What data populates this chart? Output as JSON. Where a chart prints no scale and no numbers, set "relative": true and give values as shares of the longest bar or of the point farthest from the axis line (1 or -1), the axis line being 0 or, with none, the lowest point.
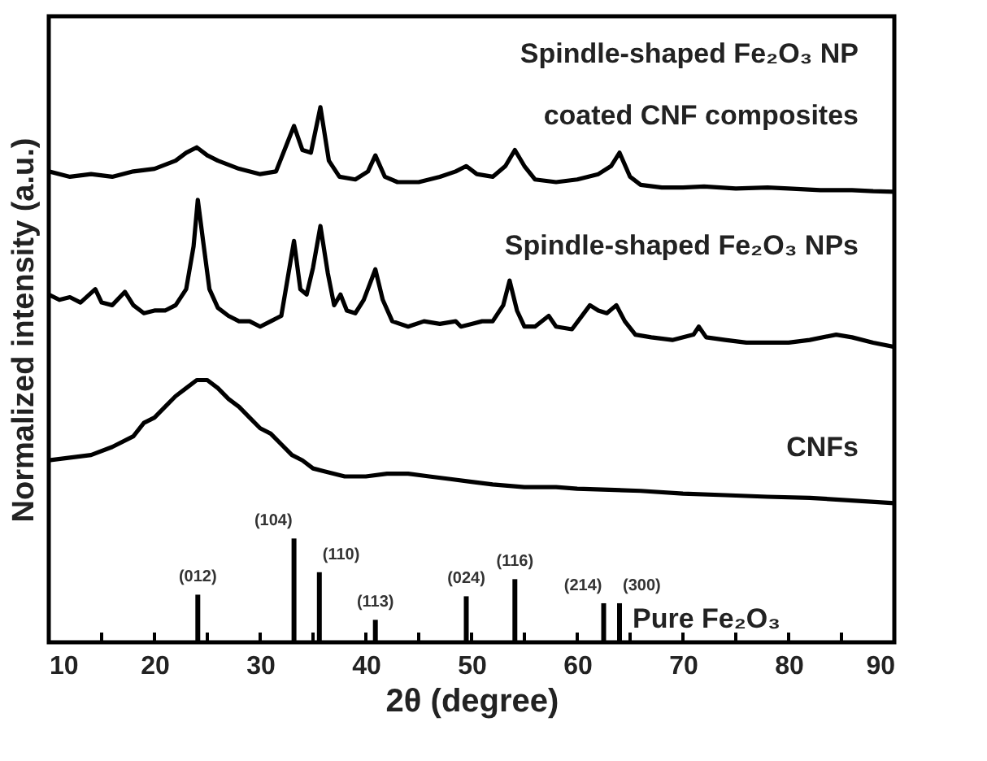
{
  "chart_data": {
    "type": "line",
    "relative": true,
    "xlabel": "2θ (degree)",
    "ylabel": "Normalized intensity (a.u.)",
    "xlim": [
      10,
      90
    ],
    "xticks": [
      10,
      {
        "value": 15,
        "label": null
      },
      20,
      {
        "value": 25,
        "label": null
      },
      30,
      {
        "value": 35,
        "label": null
      },
      40,
      {
        "value": 45,
        "label": null
      },
      50,
      {
        "value": 55,
        "label": null
      },
      60,
      {
        "value": 65,
        "label": null
      },
      70,
      {
        "value": 75,
        "label": null
      },
      80,
      {
        "value": 85,
        "label": null
      },
      90
    ],
    "series": [
      {
        "name": "Spindle-shaped Fe₂O₃ NP\ncoated CNF composites",
        "color": "#000000",
        "x": [
          10,
          12,
          14,
          16,
          18,
          20,
          22,
          23,
          24,
          25,
          26,
          28,
          30,
          31.5,
          32.5,
          33.2,
          34,
          34.8,
          35.7,
          36.5,
          37.5,
          39,
          40.2,
          40.9,
          41.8,
          43,
          45,
          47,
          48.5,
          49.5,
          50.5,
          52,
          53.2,
          54.1,
          55,
          56,
          58,
          60,
          62,
          63.2,
          64,
          65,
          66,
          68,
          70,
          72,
          75,
          78,
          80,
          83,
          86,
          88,
          90
        ],
        "values": [
          0.88,
          0.87,
          0.875,
          0.87,
          0.88,
          0.885,
          0.9,
          0.915,
          0.925,
          0.91,
          0.9,
          0.885,
          0.875,
          0.88,
          0.93,
          0.965,
          0.92,
          0.915,
          1.0,
          0.9,
          0.87,
          0.865,
          0.88,
          0.91,
          0.87,
          0.86,
          0.86,
          0.87,
          0.88,
          0.89,
          0.875,
          0.87,
          0.89,
          0.92,
          0.89,
          0.865,
          0.86,
          0.865,
          0.875,
          0.89,
          0.915,
          0.87,
          0.855,
          0.85,
          0.85,
          0.852,
          0.848,
          0.85,
          0.848,
          0.845,
          0.845,
          0.843,
          0.842
        ]
      },
      {
        "name": "Spindle-shaped Fe₂O₃ NPs",
        "color": "#000000",
        "x": [
          10,
          11,
          12,
          13,
          14.4,
          15,
          16,
          17.2,
          18,
          19,
          20,
          21,
          22,
          23,
          23.7,
          24.1,
          24.6,
          25.2,
          26,
          27,
          28,
          29,
          30,
          31,
          32,
          32.6,
          33.2,
          33.8,
          34.4,
          35,
          35.7,
          36.4,
          37,
          37.6,
          38.2,
          39,
          39.8,
          40.9,
          41.6,
          42.5,
          44,
          45.5,
          47,
          48.5,
          49,
          50,
          51,
          52,
          53,
          53.6,
          54.3,
          55,
          56,
          57.3,
          58,
          59.5,
          61.2,
          62,
          62.8,
          63.7,
          64.5,
          65.5,
          67,
          69,
          71,
          71.5,
          72.2,
          74,
          76,
          78,
          80,
          82,
          84.5,
          86,
          88,
          90
        ],
        "values": [
          0.65,
          0.64,
          0.645,
          0.635,
          0.66,
          0.635,
          0.63,
          0.655,
          0.63,
          0.615,
          0.62,
          0.62,
          0.63,
          0.66,
          0.74,
          0.827,
          0.75,
          0.66,
          0.625,
          0.61,
          0.6,
          0.6,
          0.59,
          0.6,
          0.61,
          0.68,
          0.75,
          0.66,
          0.65,
          0.7,
          0.778,
          0.69,
          0.63,
          0.65,
          0.62,
          0.615,
          0.64,
          0.697,
          0.64,
          0.6,
          0.59,
          0.6,
          0.595,
          0.6,
          0.59,
          0.595,
          0.6,
          0.6,
          0.63,
          0.676,
          0.62,
          0.59,
          0.59,
          0.61,
          0.59,
          0.585,
          0.63,
          0.62,
          0.615,
          0.63,
          0.6,
          0.575,
          0.57,
          0.565,
          0.575,
          0.59,
          0.57,
          0.565,
          0.56,
          0.56,
          0.56,
          0.565,
          0.575,
          0.57,
          0.56,
          0.552
        ]
      },
      {
        "name": "CNFs",
        "color": "#000000",
        "x": [
          10,
          12,
          14,
          16,
          18,
          19,
          20,
          21,
          22,
          23,
          24,
          25,
          26,
          27,
          28,
          29,
          30,
          31,
          32,
          33,
          34,
          35,
          36,
          38,
          40,
          42,
          44,
          46,
          48,
          50,
          52,
          55,
          58,
          60,
          63,
          66,
          70,
          74,
          78,
          82,
          86,
          90
        ],
        "values": [
          0.34,
          0.345,
          0.35,
          0.365,
          0.385,
          0.41,
          0.42,
          0.44,
          0.46,
          0.475,
          0.49,
          0.49,
          0.475,
          0.455,
          0.44,
          0.42,
          0.4,
          0.39,
          0.37,
          0.35,
          0.34,
          0.325,
          0.32,
          0.31,
          0.31,
          0.315,
          0.315,
          0.31,
          0.305,
          0.3,
          0.295,
          0.29,
          0.29,
          0.287,
          0.285,
          0.283,
          0.278,
          0.275,
          0.272,
          0.27,
          0.265,
          0.26
        ]
      },
      {
        "name": "Pure Fe₂O₃",
        "color": "#000000",
        "type": "bar",
        "x": [
          24.1,
          33.2,
          35.6,
          40.9,
          49.5,
          54.1,
          62.5,
          64.0
        ],
        "values": [
          0.089,
          0.194,
          0.131,
          0.042,
          0.086,
          0.118,
          0.073,
          0.073
        ]
      }
    ],
    "annotations": [
      {
        "text": "(012)",
        "x": 24.1,
        "y": 0.089
      },
      {
        "text": "(104)",
        "x": 33.2,
        "y": 0.194
      },
      {
        "text": "(110)",
        "x": 35.6,
        "y": 0.131
      },
      {
        "text": "(113)",
        "x": 40.9,
        "y": 0.042
      },
      {
        "text": "(024)",
        "x": 49.5,
        "y": 0.086
      },
      {
        "text": "(116)",
        "x": 54.1,
        "y": 0.118
      },
      {
        "text": "(214)",
        "x": 62.5,
        "y": 0.073
      },
      {
        "text": "(300)",
        "x": 64.0,
        "y": 0.073
      }
    ]
  }
}
